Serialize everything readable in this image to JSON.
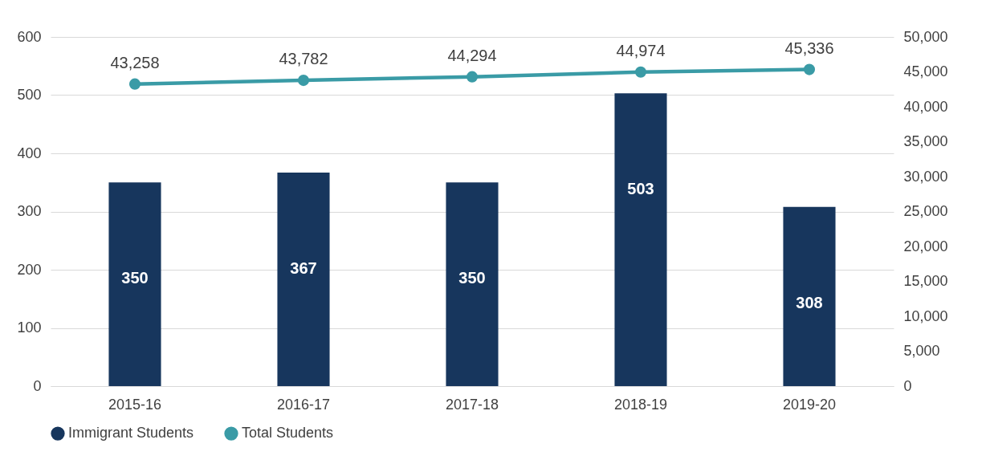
{
  "chart_data": {
    "type": "bar",
    "categories": [
      "2015-16",
      "2016-17",
      "2017-18",
      "2018-19",
      "2019-20"
    ],
    "series": [
      {
        "name": "Immigrant  Students",
        "color": "#17365d",
        "values": [
          350,
          367,
          350,
          503,
          308
        ]
      },
      {
        "name": "Total Students",
        "type": "line",
        "axis": "y2",
        "color": "#3a9ba6",
        "marker": "circle",
        "values": [
          43258,
          43782,
          44294,
          44974,
          45336
        ],
        "value_labels": [
          "43,258",
          "43,782",
          "44,294",
          "44,974",
          "45,336"
        ]
      }
    ],
    "ylim": [
      0,
      600
    ],
    "yticks": [
      0,
      100,
      200,
      300,
      400,
      500,
      600
    ],
    "y2lim": [
      0,
      50000
    ],
    "y2ticks": [
      0,
      {
        "value": 5000,
        "label": "5,000"
      },
      {
        "value": 10000,
        "label": "10,000"
      },
      {
        "value": 15000,
        "label": "15,000"
      },
      {
        "value": 20000,
        "label": "20,000"
      },
      {
        "value": 25000,
        "label": "25,000"
      },
      {
        "value": 30000,
        "label": "30,000"
      },
      {
        "value": 35000,
        "label": "35,000"
      },
      {
        "value": 40000,
        "label": "40,000"
      },
      {
        "value": 45000,
        "label": "45,000"
      },
      {
        "value": 50000,
        "label": "50,000"
      }
    ],
    "grid": "y",
    "legend": "bottom",
    "data_labels": true
  }
}
